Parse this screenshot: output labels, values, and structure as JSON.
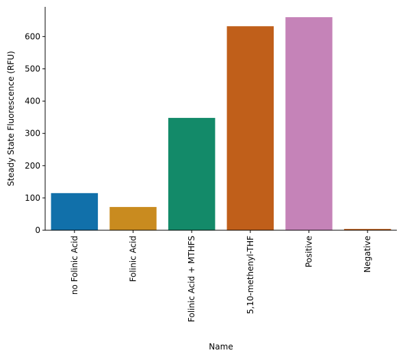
{
  "chart_data": {
    "type": "bar",
    "categories": [
      "no Folinic Acid",
      "Folinic Acid",
      "Folinic Acid + MTHFS",
      "5,10-methenyl-THF",
      "Positive",
      "Negative"
    ],
    "values": [
      115,
      72,
      348,
      632,
      660,
      4
    ],
    "colors": [
      "#1170aa",
      "#c98b1f",
      "#138a69",
      "#c05f1a",
      "#c583b8",
      "#c05f1a"
    ],
    "title": "",
    "xlabel": "Name",
    "ylabel": "Steady State Fluorescence (RFU)",
    "ylim": [
      0,
      692
    ],
    "yticks": [
      0,
      100,
      200,
      300,
      400,
      500,
      600
    ],
    "grid": false,
    "legend": "none"
  }
}
